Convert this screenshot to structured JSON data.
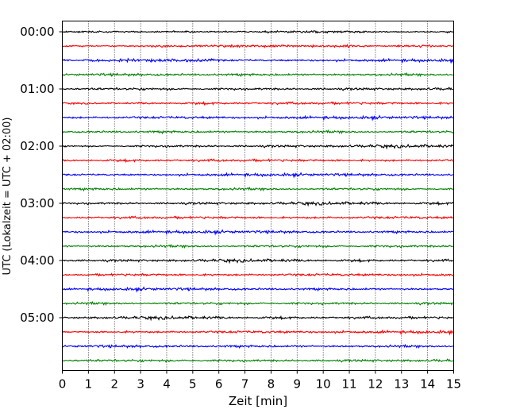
{
  "chart_data": {
    "type": "line",
    "title": "",
    "xlabel": "Zeit  [min]",
    "ylabel": "UTC (Lokalzeit = UTC + 02:00)",
    "xlim": [
      0,
      15
    ],
    "x_ticks": [
      "0",
      "1",
      "2",
      "3",
      "4",
      "5",
      "6",
      "7",
      "8",
      "9",
      "10",
      "11",
      "12",
      "13",
      "14",
      "15"
    ],
    "y_tick_labels": [
      "00:00",
      "01:00",
      "02:00",
      "03:00",
      "04:00",
      "05:00"
    ],
    "minutes_per_trace": 15,
    "trace_start_times": [
      "00:00",
      "00:15",
      "00:30",
      "00:45",
      "01:00",
      "01:15",
      "01:30",
      "01:45",
      "02:00",
      "02:15",
      "02:30",
      "02:45",
      "03:00",
      "03:15",
      "03:30",
      "03:45",
      "04:00",
      "04:15",
      "04:30",
      "04:45",
      "05:00",
      "05:15",
      "05:30",
      "05:45"
    ],
    "trace_colors": [
      "#000000",
      "#ff0000",
      "#0000ff",
      "#008000"
    ],
    "grid": "vertical dotted at each minute",
    "legend": "none"
  }
}
